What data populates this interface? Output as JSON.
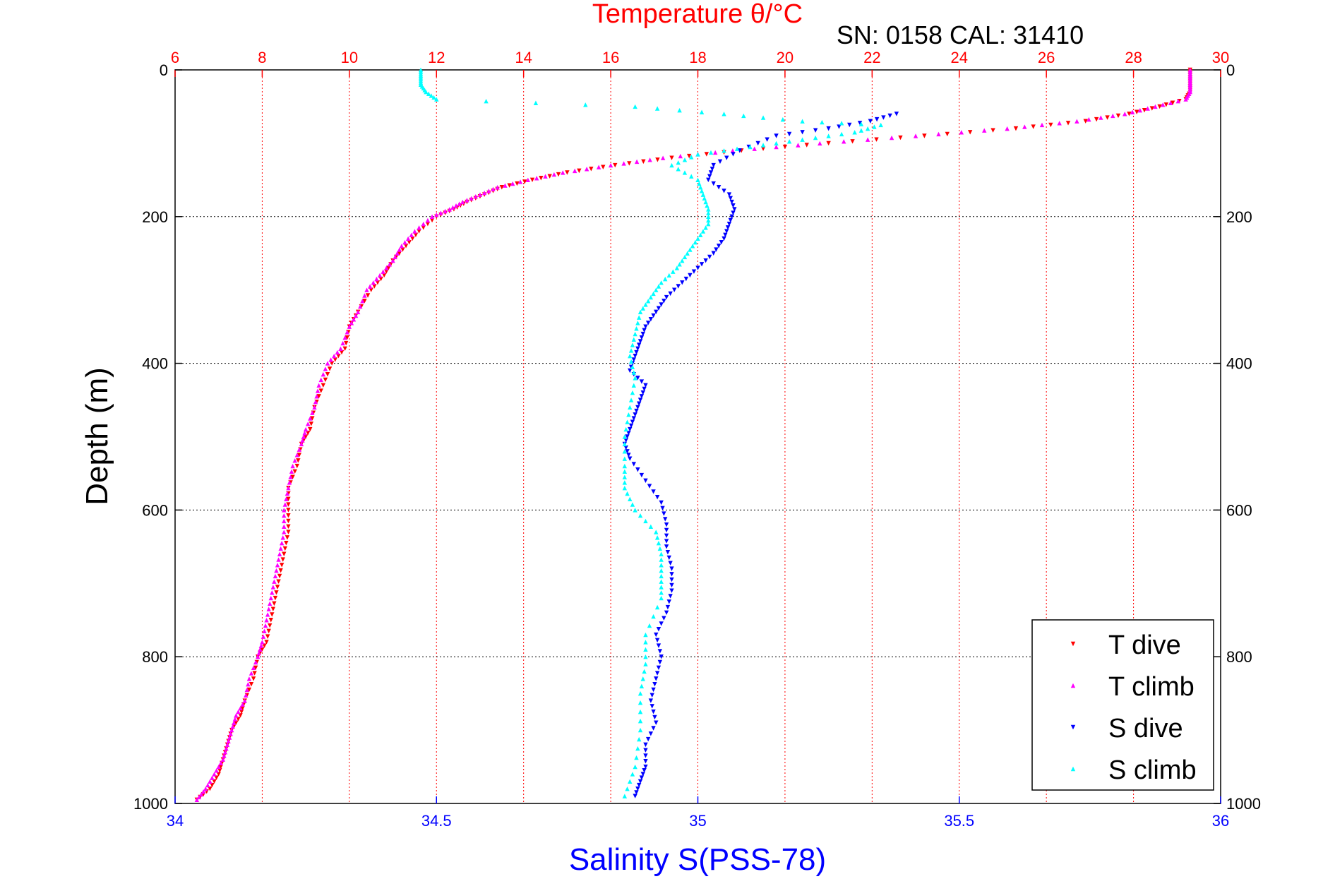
{
  "chart_data": {
    "type": "scatter",
    "title": "Temperature θ/°C",
    "subtitle": "SN: 0158  CAL: 31410",
    "ylabel": "Depth (m)",
    "xlabel_bottom": "Salinity S(PSS-78)",
    "ylim": [
      0,
      1000
    ],
    "y_reversed": true,
    "x_top_lim": [
      6,
      30
    ],
    "x_bottom_lim": [
      34,
      36
    ],
    "y_ticks": [
      "0",
      "200",
      "400",
      "600",
      "800",
      "1000"
    ],
    "x_top_ticks": [
      "6",
      "8",
      "10",
      "12",
      "14",
      "16",
      "18",
      "20",
      "22",
      "24",
      "26",
      "28",
      "30"
    ],
    "x_bottom_ticks": [
      "34",
      "34.5",
      "35",
      "35.5",
      "36"
    ],
    "grid": true,
    "legend_position": "bottom-right",
    "colors": {
      "title": "#ff0000",
      "top_axis": "#ff0000",
      "bottom_axis": "#0000ff",
      "grid_x": "#ff0000",
      "grid_y": "#000000",
      "t_dive": "#ff0000",
      "t_climb": "#ff00ff",
      "s_dive": "#0000ff",
      "s_climb": "#00ffff"
    },
    "series": [
      {
        "name": "T dive",
        "axis": "top",
        "marker": "down-triangle",
        "color": "#ff0000",
        "x": [
          29.3,
          29.3,
          29.3,
          29.3,
          29.2,
          28.6,
          27.9,
          26.9,
          25.3,
          23.2,
          21.0,
          19.0,
          17.4,
          16.1,
          15.0,
          14.2,
          13.5,
          13.1,
          12.7,
          12.4,
          12.0,
          11.6,
          11.3,
          11.0,
          10.8,
          10.5,
          10.2,
          10.0,
          9.9,
          9.6,
          9.4,
          9.2,
          9.1,
          8.9,
          8.8,
          8.6,
          8.6,
          8.6,
          8.5,
          8.4,
          8.3,
          8.2,
          8.1,
          7.9,
          7.8,
          7.6,
          7.5,
          7.3,
          7.2,
          7.1,
          7.0,
          6.8,
          6.5
        ],
        "y": [
          0,
          10,
          20,
          30,
          40,
          50,
          60,
          70,
          80,
          90,
          100,
          110,
          120,
          130,
          140,
          150,
          160,
          170,
          180,
          190,
          200,
          220,
          240,
          260,
          280,
          300,
          330,
          350,
          380,
          400,
          430,
          460,
          490,
          510,
          540,
          570,
          600,
          630,
          660,
          690,
          720,
          750,
          780,
          800,
          830,
          860,
          880,
          900,
          920,
          940,
          960,
          980,
          995
        ]
      },
      {
        "name": "T climb",
        "axis": "top",
        "marker": "up-triangle",
        "color": "#ff00ff",
        "x": [
          29.3,
          29.3,
          29.3,
          29.3,
          29.2,
          28.5,
          27.8,
          26.7,
          25.1,
          23.0,
          20.8,
          18.8,
          17.2,
          16.0,
          14.9,
          14.1,
          13.4,
          13.0,
          12.6,
          12.3,
          11.9,
          11.5,
          11.2,
          11.0,
          10.7,
          10.4,
          10.2,
          10.0,
          9.8,
          9.5,
          9.3,
          9.2,
          9.0,
          8.9,
          8.7,
          8.6,
          8.5,
          8.5,
          8.4,
          8.3,
          8.2,
          8.1,
          8.0,
          7.9,
          7.7,
          7.6,
          7.4,
          7.3,
          7.2,
          7.1,
          6.9,
          6.7,
          6.5
        ],
        "y": [
          0,
          10,
          20,
          30,
          40,
          50,
          60,
          70,
          80,
          90,
          100,
          110,
          120,
          130,
          140,
          150,
          160,
          170,
          180,
          190,
          200,
          220,
          240,
          260,
          280,
          300,
          330,
          350,
          380,
          400,
          430,
          460,
          490,
          510,
          540,
          570,
          600,
          630,
          660,
          690,
          720,
          750,
          780,
          800,
          830,
          860,
          880,
          900,
          920,
          940,
          960,
          980,
          995
        ]
      },
      {
        "name": "S dive",
        "axis": "bottom",
        "marker": "down-triangle",
        "color": "#0000ff",
        "x": [
          35.38,
          35.33,
          35.25,
          35.15,
          35.08,
          35.03,
          35.02,
          35.06,
          35.07,
          35.06,
          35.05,
          35.03,
          35.0,
          34.97,
          34.94,
          34.92,
          34.9,
          34.89,
          34.88,
          34.87,
          34.9,
          34.89,
          34.88,
          34.87,
          34.86,
          34.87,
          34.9,
          34.93,
          34.94,
          34.94,
          34.95,
          34.95,
          34.94,
          34.92,
          34.93,
          34.92,
          34.91,
          34.92,
          34.9,
          34.9,
          34.89,
          34.88
        ],
        "y": [
          60,
          70,
          80,
          90,
          110,
          130,
          150,
          170,
          190,
          210,
          230,
          250,
          270,
          290,
          310,
          330,
          350,
          370,
          390,
          410,
          430,
          450,
          470,
          490,
          510,
          530,
          560,
          590,
          620,
          650,
          680,
          710,
          740,
          770,
          800,
          830,
          860,
          890,
          920,
          950,
          970,
          990
        ]
      },
      {
        "name": "S climb",
        "axis": "bottom",
        "marker": "up-triangle",
        "color": "#00ffff",
        "x": [
          34.47,
          34.47,
          34.47,
          34.48,
          34.5,
          34.88,
          35.05,
          35.2,
          35.35,
          35.3,
          35.2,
          35.1,
          35.0,
          34.95,
          35.0,
          35.01,
          35.02,
          35.02,
          35.0,
          34.98,
          34.96,
          34.93,
          34.91,
          34.89,
          34.88,
          34.87,
          34.88,
          34.87,
          34.86,
          34.86,
          34.86,
          34.88,
          34.92,
          34.93,
          34.93,
          34.93,
          34.9,
          34.9,
          34.89,
          34.89,
          34.88,
          34.86
        ],
        "y": [
          0,
          10,
          20,
          30,
          40,
          50,
          60,
          70,
          75,
          85,
          95,
          105,
          115,
          130,
          150,
          170,
          190,
          210,
          230,
          250,
          270,
          290,
          310,
          330,
          360,
          390,
          420,
          460,
          500,
          540,
          570,
          600,
          630,
          660,
          690,
          720,
          770,
          810,
          850,
          900,
          950,
          990
        ]
      }
    ]
  }
}
